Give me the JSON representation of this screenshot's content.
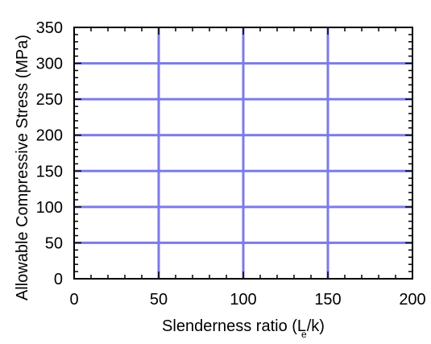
{
  "chart_data": {
    "type": "line",
    "title": "",
    "xlabel": "Slenderness ratio (L/k)",
    "xlabel_parts": {
      "prefix": "Slenderness ratio (",
      "L": "L",
      "sub": "e",
      "suffix": "/k)"
    },
    "ylabel": "Allowable Compressive Stress (MPa)",
    "xlim": [
      0,
      200
    ],
    "ylim": [
      0,
      350
    ],
    "x_ticks": [
      0,
      50,
      100,
      150,
      200
    ],
    "y_ticks": [
      0,
      50,
      100,
      150,
      200,
      250,
      300,
      350
    ],
    "x_tick_labels": [
      "0",
      "50",
      "100",
      "150",
      "200"
    ],
    "y_tick_labels": [
      "0",
      "50",
      "100",
      "150",
      "200",
      "250",
      "300",
      "350"
    ],
    "x_minor_step": 10,
    "y_minor_step": 10,
    "grid": true,
    "grid_color": "#7b7be8",
    "series": []
  }
}
